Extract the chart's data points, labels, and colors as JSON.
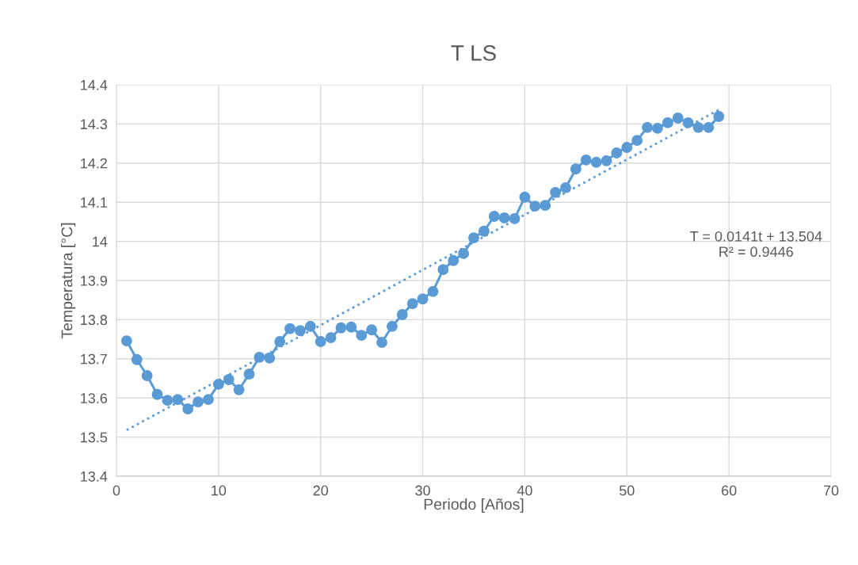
{
  "chart_data": {
    "type": "line",
    "title": "T LS",
    "xlabel": "Periodo [Años]",
    "ylabel": "Temperatura [°C]",
    "x": [
      1,
      2,
      3,
      4,
      5,
      6,
      7,
      8,
      9,
      10,
      11,
      12,
      13,
      14,
      15,
      16,
      17,
      18,
      19,
      20,
      21,
      22,
      23,
      24,
      25,
      26,
      27,
      28,
      29,
      30,
      31,
      32,
      33,
      34,
      35,
      36,
      37,
      38,
      39,
      40,
      41,
      42,
      43,
      44,
      45,
      46,
      47,
      48,
      49,
      50,
      51,
      52,
      53,
      54,
      55,
      56,
      57,
      58,
      59
    ],
    "series": [
      {
        "color": "#5b9bd5",
        "marker": "circle",
        "line_style": "solid",
        "values": [
          13.746,
          13.698,
          13.657,
          13.609,
          13.594,
          13.596,
          13.572,
          13.59,
          13.596,
          13.635,
          13.647,
          13.621,
          13.661,
          13.704,
          13.702,
          13.744,
          13.777,
          13.772,
          13.783,
          13.744,
          13.754,
          13.779,
          13.781,
          13.76,
          13.774,
          13.742,
          13.783,
          13.813,
          13.841,
          13.853,
          13.872,
          13.928,
          13.951,
          13.969,
          14.009,
          14.026,
          14.064,
          14.06,
          14.058,
          14.113,
          14.09,
          14.092,
          14.125,
          14.137,
          14.185,
          14.208,
          14.202,
          14.206,
          14.226,
          14.24,
          14.258,
          14.291,
          14.289,
          14.303,
          14.315,
          14.303,
          14.291,
          14.291,
          14.319
        ]
      },
      {
        "type": "line",
        "color": "#5b9bd5",
        "marker": "none",
        "line_style": "dotted",
        "x": [
          1,
          59
        ],
        "values": [
          13.518,
          14.336
        ]
      }
    ],
    "annotations": [
      "T = 0.0141t + 13.504\nR² = 0.9446"
    ],
    "xlim": [
      0,
      70
    ],
    "xticks": [
      0,
      10,
      20,
      30,
      40,
      50,
      60,
      70
    ],
    "ylim": [
      13.4,
      14.4
    ],
    "yticks": [
      13.4,
      13.5,
      13.6,
      13.7,
      13.8,
      13.9,
      {
        "value": 14,
        "label": "14"
      },
      14.1,
      14.2,
      14.3,
      14.4
    ],
    "grid": true,
    "legend": false
  }
}
